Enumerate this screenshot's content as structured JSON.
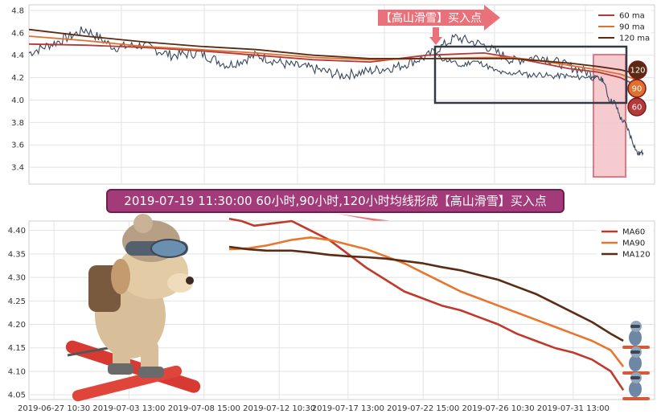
{
  "chart_data": [
    {
      "type": "line",
      "title": "",
      "ylim": [
        3.25,
        4.85
      ],
      "yticks": [
        3.4,
        3.6,
        3.8,
        4.0,
        4.2,
        4.4,
        4.6,
        4.8
      ],
      "grid": true,
      "legend_position": "top-right",
      "price_series": {
        "name": "",
        "x": [
          0,
          5,
          10,
          15,
          20,
          25,
          30,
          35,
          40,
          45,
          50,
          55,
          60,
          65,
          70,
          75,
          80,
          85,
          90,
          95,
          100
        ],
        "values": [
          4.42,
          4.52,
          4.63,
          4.47,
          4.49,
          4.4,
          4.42,
          4.31,
          4.4,
          4.32,
          4.28,
          4.22,
          4.26,
          4.3,
          4.39,
          4.56,
          4.49,
          4.35,
          4.39,
          4.3,
          4.22
        ]
      },
      "price_tail": {
        "x": [
          72,
          74,
          76,
          78,
          80,
          82,
          84,
          86,
          88,
          90,
          92,
          94,
          96,
          98,
          100,
          101,
          102,
          103,
          104,
          105,
          106,
          107,
          108
        ],
        "values": [
          4.38,
          4.35,
          4.3,
          4.35,
          4.32,
          4.26,
          4.23,
          4.25,
          4.22,
          4.23,
          4.21,
          4.22,
          4.2,
          4.21,
          4.19,
          4.18,
          4.0,
          3.98,
          3.84,
          3.78,
          3.65,
          3.52,
          3.53
        ]
      },
      "series": [
        {
          "name": "60 ma",
          "color": "#b33a3a",
          "x": [
            0,
            10,
            20,
            30,
            40,
            50,
            60,
            70,
            80,
            85,
            90,
            95,
            100,
            104,
            108
          ],
          "values": [
            4.5,
            4.49,
            4.47,
            4.44,
            4.4,
            4.36,
            4.34,
            4.4,
            4.42,
            4.38,
            4.33,
            4.28,
            4.25,
            4.2,
            4.1
          ]
        },
        {
          "name": "90 ma",
          "color": "#e07030",
          "x": [
            0,
            10,
            20,
            30,
            40,
            50,
            60,
            70,
            80,
            85,
            90,
            95,
            100,
            104,
            108
          ],
          "values": [
            4.57,
            4.53,
            4.48,
            4.45,
            4.42,
            4.38,
            4.36,
            4.37,
            4.38,
            4.38,
            4.35,
            4.31,
            4.27,
            4.23,
            4.16
          ]
        },
        {
          "name": "120 ma",
          "color": "#5a2a14",
          "x": [
            0,
            10,
            20,
            30,
            40,
            50,
            60,
            70,
            80,
            85,
            90,
            95,
            100,
            104,
            108
          ],
          "values": [
            4.63,
            4.57,
            4.52,
            4.48,
            4.45,
            4.4,
            4.37,
            4.37,
            4.37,
            4.37,
            4.35,
            4.33,
            4.3,
            4.27,
            4.22
          ]
        }
      ],
      "xlim": [
        0,
        110
      ]
    },
    {
      "type": "line",
      "title": "",
      "ylim": [
        4.04,
        4.42
      ],
      "yticks": [
        4.05,
        4.1,
        4.15,
        4.2,
        4.25,
        4.3,
        4.35,
        4.4
      ],
      "xlim": [
        0,
        100
      ],
      "x_tick_positions": [
        4,
        16,
        28,
        40,
        51,
        63,
        75,
        87
      ],
      "x_tick_labels": [
        "2019-06-27 10:30",
        "2019-07-03 13:00",
        "2019-07-08 15:00",
        "2019-07-12 10:30",
        "2019-07-17 13:00",
        "2019-07-22 15:00",
        "2019-07-26 10:30",
        "2019-07-31 13:00"
      ],
      "grid": true,
      "legend_position": "top-right",
      "series": [
        {
          "name": "MA60",
          "color": "#c0392b",
          "x": [
            32,
            34,
            36,
            39,
            42,
            45,
            48,
            51,
            54,
            57,
            60,
            63,
            66,
            69,
            72,
            75,
            78,
            81,
            84,
            87,
            90,
            93,
            95
          ],
          "values": [
            4.425,
            4.42,
            4.41,
            4.415,
            4.42,
            4.4,
            4.38,
            4.35,
            4.32,
            4.295,
            4.27,
            4.255,
            4.24,
            4.23,
            4.215,
            4.2,
            4.18,
            4.165,
            4.15,
            4.14,
            4.125,
            4.1,
            4.06
          ]
        },
        {
          "name": "MA90",
          "color": "#e8762d",
          "x": [
            32,
            35,
            38,
            42,
            45,
            48,
            51,
            54,
            57,
            60,
            63,
            66,
            69,
            72,
            75,
            78,
            81,
            84,
            87,
            90,
            93,
            95
          ],
          "values": [
            4.36,
            4.362,
            4.368,
            4.38,
            4.385,
            4.38,
            4.37,
            4.36,
            4.345,
            4.33,
            4.31,
            4.29,
            4.27,
            4.255,
            4.24,
            4.225,
            4.21,
            4.195,
            4.18,
            4.165,
            4.145,
            4.11
          ]
        },
        {
          "name": "MA120",
          "color": "#5b2c14",
          "x": [
            32,
            35,
            38,
            42,
            45,
            48,
            51,
            54,
            57,
            60,
            63,
            66,
            69,
            72,
            75,
            78,
            81,
            84,
            87,
            90,
            93,
            95
          ],
          "values": [
            4.365,
            4.36,
            4.357,
            4.357,
            4.353,
            4.348,
            4.345,
            4.343,
            4.34,
            4.335,
            4.33,
            4.322,
            4.315,
            4.305,
            4.295,
            4.28,
            4.265,
            4.245,
            4.225,
            4.205,
            4.18,
            4.165
          ]
        }
      ]
    }
  ],
  "annotations": {
    "banner_label": "【高山滑雪】买入点",
    "caption": "2019-07-19 11:30:00 60小时,90小时,120小时均线形成【高山滑雪】买入点",
    "badges": [
      "120",
      "90",
      "60"
    ]
  },
  "colors": {
    "banner_fill": "#e9727a",
    "caption_fill": "#a33a7a",
    "caption_border": "#6b1f4a",
    "highlight_fill": "#f6c6cc",
    "highlight_border": "#e46a78",
    "box_border": "#333a44",
    "candle": "#37475b"
  }
}
